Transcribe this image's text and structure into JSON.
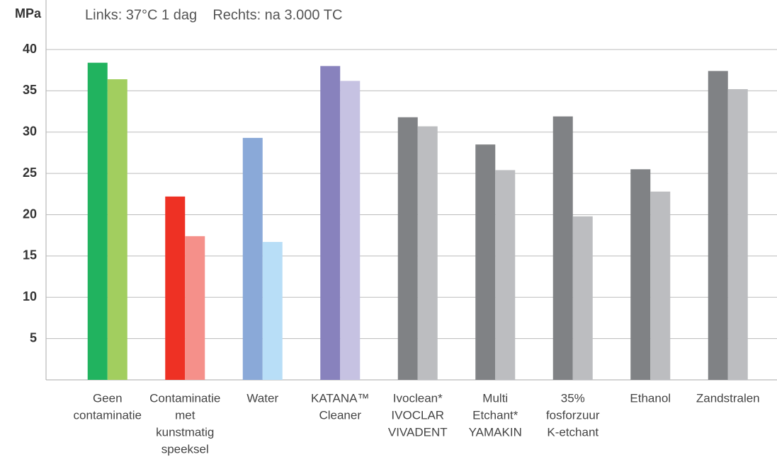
{
  "chart_data": {
    "type": "bar",
    "subtitle": "Links: 37°C 1 dag    Rechts: na 3.000 TC",
    "ylabel": "MPa",
    "categories": [
      [
        "Geen",
        "contaminatie"
      ],
      [
        "Contaminatie",
        "met",
        "kunstmatig",
        "speeksel"
      ],
      [
        "Water"
      ],
      [
        "KATANA™",
        "Cleaner"
      ],
      [
        "Ivoclean*",
        "IVOCLAR",
        "VIVADENT"
      ],
      [
        "Multi",
        "Etchant*",
        "YAMAKIN"
      ],
      [
        "35%",
        "fosforzuur",
        "K-etchant"
      ],
      [
        "Ethanol"
      ],
      [
        "Zandstralen"
      ]
    ],
    "series": [
      {
        "values": [
          38.4,
          22.2,
          29.3,
          38.0,
          31.8,
          28.5,
          31.9,
          25.5,
          37.4
        ],
        "colors": [
          "#21b35f",
          "#ee3124",
          "#8aa9d8",
          "#8882bd",
          "#808285",
          "#808285",
          "#808285",
          "#808285",
          "#808285"
        ]
      },
      {
        "values": [
          36.4,
          17.4,
          16.7,
          36.2,
          30.7,
          25.4,
          19.8,
          22.8,
          35.2
        ],
        "colors": [
          "#a2ce5f",
          "#f5908a",
          "#b8def7",
          "#c6c2e2",
          "#bcbdc0",
          "#bcbdc0",
          "#bcbdc0",
          "#bcbdc0",
          "#bcbdc0"
        ]
      }
    ],
    "ylim": [
      0,
      40
    ],
    "yticks": [
      5,
      10,
      15,
      20,
      25,
      30,
      35,
      40
    ],
    "grid": true
  }
}
